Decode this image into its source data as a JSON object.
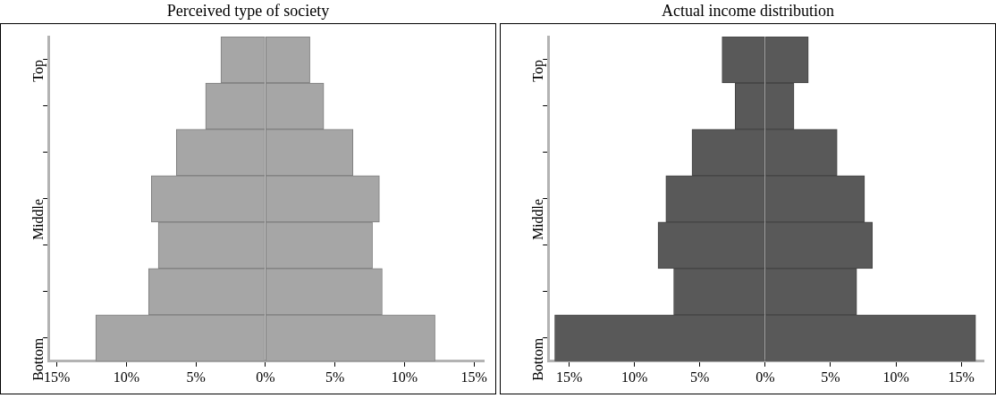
{
  "chart_data": [
    {
      "type": "bar",
      "orientation": "horizontal",
      "stacked": true,
      "title": "Perceived type of society",
      "categories": [
        "Top",
        null,
        null,
        "Middle",
        null,
        null,
        "Bottom"
      ],
      "series": [
        {
          "color": "#a6a6a6",
          "values": [
            -3.2,
            -4.3,
            -6.4,
            -8.2,
            -7.7,
            -8.4,
            -12.2
          ]
        },
        {
          "color": "#a6a6a6",
          "values": [
            3.2,
            4.2,
            6.3,
            8.2,
            7.7,
            8.4,
            12.2
          ]
        }
      ],
      "xlim": [
        -15.6,
        15.7
      ],
      "xticks": [
        {
          "value": -15,
          "label": "15%"
        },
        {
          "value": -10,
          "label": "10%"
        },
        {
          "value": -5,
          "label": "5%"
        },
        {
          "value": 0,
          "label": "0%"
        },
        {
          "value": 5,
          "label": "5%"
        },
        {
          "value": 10,
          "label": "10%"
        },
        {
          "value": 15,
          "label": "15%"
        }
      ],
      "grid": false,
      "legend": false
    },
    {
      "type": "bar",
      "orientation": "horizontal",
      "stacked": true,
      "title": "Actual income distribution",
      "categories": [
        "Top",
        null,
        null,
        "Middle",
        null,
        null,
        "Bottom"
      ],
      "series": [
        {
          "color": "#595959",
          "values": [
            -3.3,
            -2.3,
            -5.6,
            -7.6,
            -8.2,
            -7.0,
            -16.1
          ]
        },
        {
          "color": "#595959",
          "values": [
            3.3,
            2.2,
            5.5,
            7.6,
            8.2,
            7.0,
            16.1
          ]
        }
      ],
      "xlim": [
        -16.6,
        16.7
      ],
      "xticks": [
        {
          "value": -15,
          "label": "15%"
        },
        {
          "value": -10,
          "label": "10%"
        },
        {
          "value": -5,
          "label": "5%"
        },
        {
          "value": 0,
          "label": "0%"
        },
        {
          "value": 5,
          "label": "5%"
        },
        {
          "value": 10,
          "label": "10%"
        },
        {
          "value": 15,
          "label": "15%"
        }
      ],
      "grid": false,
      "legend": false
    }
  ]
}
